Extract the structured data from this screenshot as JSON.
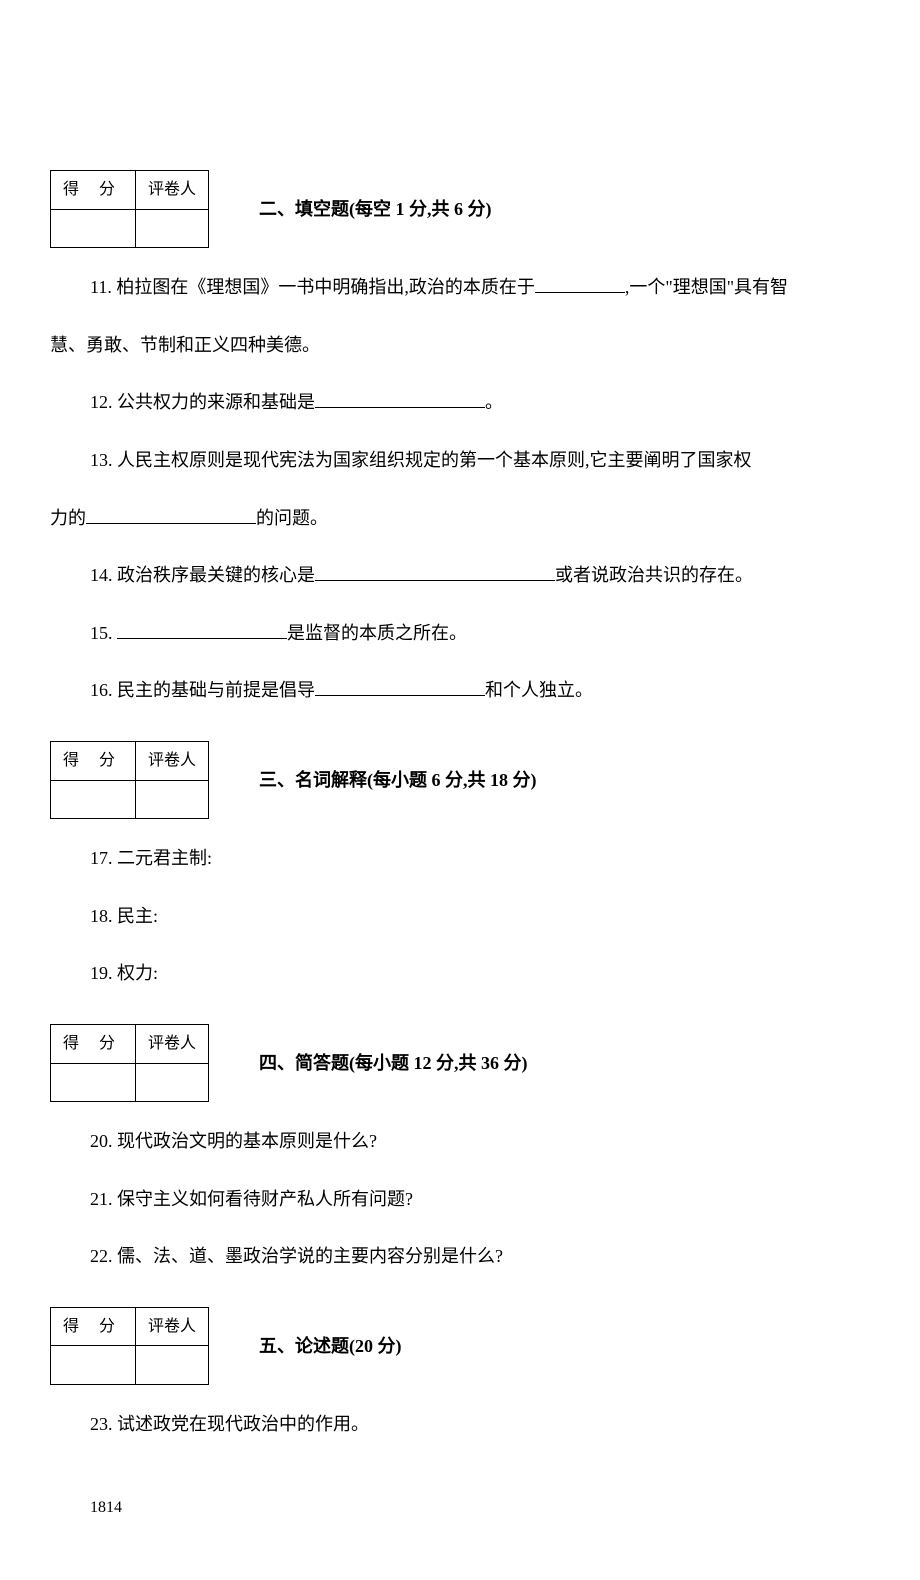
{
  "scoreTable": {
    "scoreLabel": "得  分",
    "graderLabel": "评卷人"
  },
  "section2": {
    "title": "二、填空题(每空 1 分,共 6 分)",
    "q11_part1": "11. 柏拉图在《理想国》一书中明确指出,政治的本质在于",
    "q11_part2": ",一个\"理想国\"具有智",
    "q11_cont": "慧、勇敢、节制和正义四种美德。",
    "q12_part1": "12. 公共权力的来源和基础是",
    "q12_part2": "。",
    "q13_part1": "13. 人民主权原则是现代宪法为国家组织规定的第一个基本原则,它主要阐明了国家权",
    "q13_cont1": "力的",
    "q13_cont2": "的问题。",
    "q14_part1": "14. 政治秩序最关键的核心是",
    "q14_part2": "或者说政治共识的存在。",
    "q15_part1": "15. ",
    "q15_part2": "是监督的本质之所在。",
    "q16_part1": "16. 民主的基础与前提是倡导",
    "q16_part2": "和个人独立。"
  },
  "section3": {
    "title": "三、名词解释(每小题 6 分,共 18 分)",
    "q17": "17. 二元君主制:",
    "q18": "18. 民主:",
    "q19": "19. 权力:"
  },
  "section4": {
    "title": "四、简答题(每小题 12 分,共 36 分)",
    "q20": "20. 现代政治文明的基本原则是什么?",
    "q21": "21. 保守主义如何看待财产私人所有问题?",
    "q22": "22. 儒、法、道、墨政治学说的主要内容分别是什么?"
  },
  "section5": {
    "title": "五、论述题(20 分)",
    "q23": "23. 试述政党在现代政治中的作用。"
  },
  "pageNumber": "1814"
}
